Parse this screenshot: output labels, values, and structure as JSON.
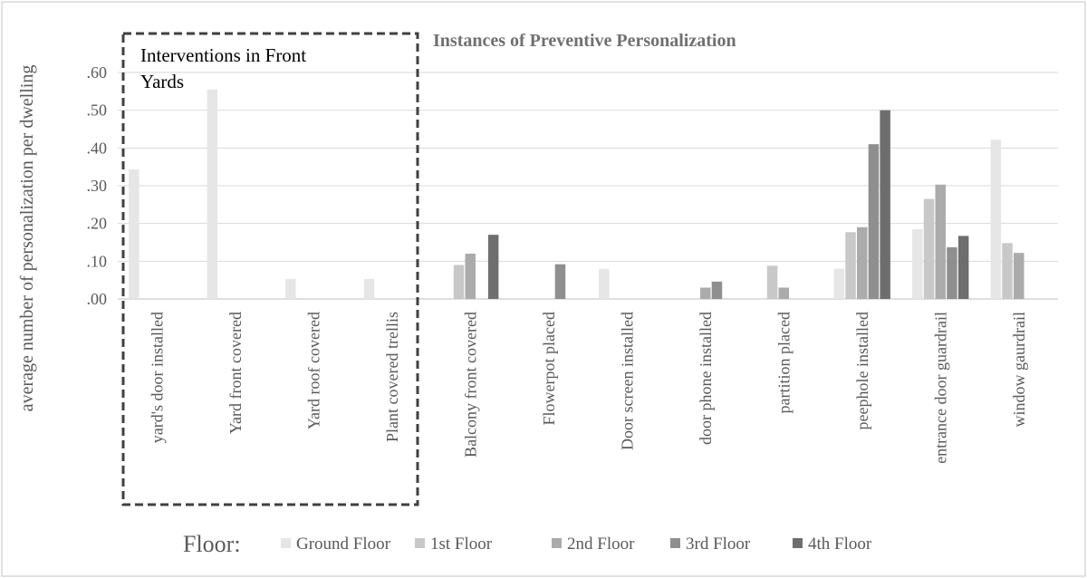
{
  "chart_data": {
    "type": "bar",
    "title": "Instances of Preventive Personalization",
    "ylabel": "average number of personalization per dwelling",
    "xlabel": "",
    "ylim": [
      0,
      0.6
    ],
    "yticks": [
      0,
      0.1,
      0.2,
      0.3,
      0.4,
      0.5,
      0.6
    ],
    "ytick_labels": [
      ".00",
      ".10",
      ".20",
      ".30",
      ".40",
      ".50",
      ".60"
    ],
    "grid": true,
    "categories": [
      "yard's door installed",
      "Yard front covered",
      "Yard roof covered",
      "Plant covered trellis",
      "Balcony front covered",
      "Flowerpot placed",
      "Door screen installed",
      "door phone installed",
      "partition placed",
      "peephole installed",
      "entrance door guardrail",
      "window gaurdrail"
    ],
    "series": [
      {
        "name": "Ground Floor",
        "color": "#e6e6e6",
        "values": [
          0.343,
          0.555,
          0.053,
          0.053,
          0,
          0,
          0.08,
          0,
          0,
          0.08,
          0.185,
          0.422
        ]
      },
      {
        "name": "1st Floor",
        "color": "#c8c8c8",
        "values": [
          0,
          0,
          0,
          0,
          0.09,
          0,
          0,
          0,
          0.088,
          0.177,
          0.265,
          0.148
        ]
      },
      {
        "name": "2nd Floor",
        "color": "#ababab",
        "values": [
          0,
          0,
          0,
          0,
          0.12,
          0,
          0,
          0.03,
          0.03,
          0.19,
          0.303,
          0.122
        ]
      },
      {
        "name": "3rd Floor",
        "color": "#8f8f8f",
        "values": [
          0,
          0,
          0,
          0,
          0,
          0.092,
          0,
          0.046,
          0,
          0.41,
          0.137,
          0
        ]
      },
      {
        "name": "4th Floor",
        "color": "#6e6e6e",
        "values": [
          0,
          0,
          0,
          0,
          0.17,
          0,
          0,
          0,
          0,
          0.5,
          0.167,
          0
        ]
      }
    ],
    "legend": {
      "title": "Floor:",
      "position": "bottom"
    },
    "annotation": {
      "text_line1": "Interventions in Front",
      "text_line2": "Yards"
    }
  }
}
